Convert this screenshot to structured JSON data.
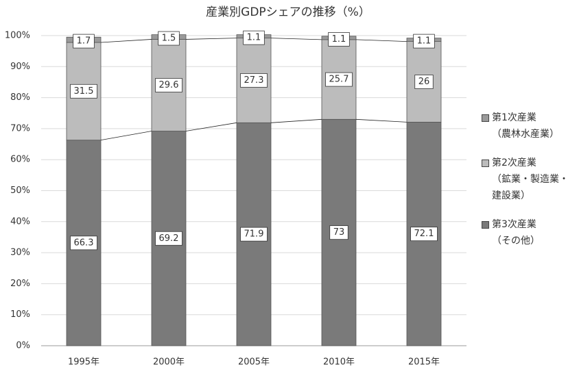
{
  "chart_data": {
    "type": "stacked-bar",
    "title": "産業別GDPシェアの推移（%）",
    "categories": [
      "1995年",
      "2000年",
      "2005年",
      "2010年",
      "2015年"
    ],
    "series": [
      {
        "name": "第3次産業\n（その他）",
        "color": "#7a7a7a",
        "values": [
          66.3,
          69.2,
          71.9,
          73,
          72.1
        ]
      },
      {
        "name": "第2次産業\n（鉱業・製造業・\n建設業）",
        "color": "#bcbcbc",
        "values": [
          31.5,
          29.6,
          27.3,
          25.7,
          26
        ]
      },
      {
        "name": "第1次産業\n（農林水産業）",
        "color": "#9a9a9a",
        "values": [
          1.7,
          1.5,
          1.1,
          1.1,
          1.1
        ]
      }
    ],
    "ylim": [
      0,
      100
    ],
    "yticks": [
      {
        "value": 0,
        "label": "0%"
      },
      {
        "value": 10,
        "label": "10%"
      },
      {
        "value": 20,
        "label": "20%"
      },
      {
        "value": 30,
        "label": "30%"
      },
      {
        "value": 40,
        "label": "40%"
      },
      {
        "value": 50,
        "label": "50%"
      },
      {
        "value": 60,
        "label": "60%"
      },
      {
        "value": 70,
        "label": "70%"
      },
      {
        "value": 80,
        "label": "80%"
      },
      {
        "value": 90,
        "label": "90%"
      },
      {
        "value": 100,
        "label": "100%"
      }
    ],
    "grid": true
  }
}
